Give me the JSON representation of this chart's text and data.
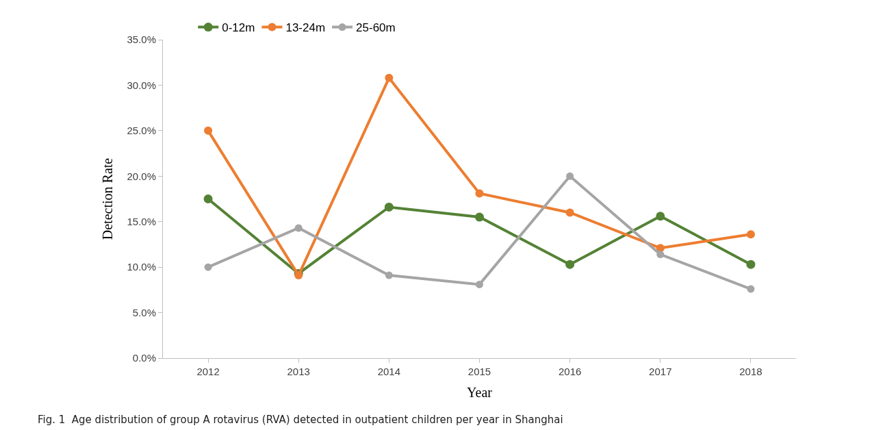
{
  "chart_data": {
    "type": "line",
    "xlabel": "Year",
    "ylabel": "Detection Rate",
    "categories": [
      "2012",
      "2013",
      "2014",
      "2015",
      "2016",
      "2017",
      "2018"
    ],
    "series": [
      {
        "name": "0-12m",
        "color": "#548235",
        "values": [
          17.5,
          9.3,
          16.6,
          15.5,
          10.3,
          15.6,
          10.3
        ]
      },
      {
        "name": "13-24m",
        "color": "#ed7d31",
        "values": [
          25.0,
          9.1,
          30.8,
          18.1,
          16.0,
          12.1,
          13.6
        ]
      },
      {
        "name": "25-60m",
        "color": "#a5a5a5",
        "values": [
          10.0,
          14.3,
          9.1,
          8.1,
          20.0,
          11.4,
          7.6
        ]
      }
    ],
    "ylim": [
      0,
      35
    ],
    "yticks": [
      {
        "value": 0,
        "label": "0.0%"
      },
      {
        "value": 5,
        "label": "5.0%"
      },
      {
        "value": 10,
        "label": "10.0%"
      },
      {
        "value": 15,
        "label": "15.0%"
      },
      {
        "value": 20,
        "label": "20.0%"
      },
      {
        "value": 25,
        "label": "25.0%"
      },
      {
        "value": 30,
        "label": "30.0%"
      },
      {
        "value": 35,
        "label": "35.0%"
      }
    ],
    "grid": false,
    "legend": "top left",
    "marker": "circle",
    "line_style": "solid",
    "annotations": [
      "Fig. 1  Age distribution of group A rotavirus (RVA) detected in outpatient children per year in Shanghai"
    ]
  }
}
